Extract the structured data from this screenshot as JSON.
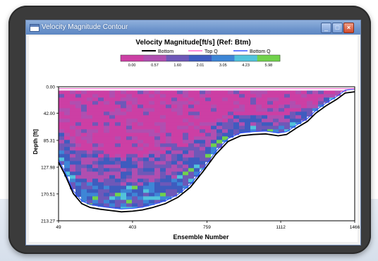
{
  "window": {
    "title": "Velocity Magnitude Contour",
    "icon": "window-icon",
    "controls": {
      "minimize": "_",
      "maximize": "□",
      "close": "×"
    }
  },
  "colors": {
    "frame": "#3b3b3b",
    "titlebar": "#6e95cc",
    "bottom_line": "#000000",
    "top_q_line": "#ff66cc",
    "bottom_q_line": "#3355ff"
  },
  "chart_data": {
    "type": "heatmap",
    "title": "Velocity Magnitude[ft/s] (Ref: Btm)",
    "legend": {
      "placement": "top",
      "entries": [
        "Bottom",
        "Top Q",
        "Bottom Q"
      ]
    },
    "colorbar": {
      "ticks": [
        "0.00",
        "0.57",
        "1.60",
        "2.01",
        "3.05",
        "4.23",
        "5.98"
      ],
      "colors": [
        "#cc3fa4",
        "#b04fb0",
        "#6e58b8",
        "#3e5cbf",
        "#3e86d6",
        "#52c3dc",
        "#71d24c"
      ]
    },
    "ylabel": "Depth [ft]",
    "xlabel": "Ensemble Number",
    "y_ticks": [
      "0.00",
      "42.00",
      "85.31",
      "127.98",
      "170.51",
      "213.27"
    ],
    "x_ticks": [
      "49",
      "403",
      "759",
      "1112",
      "1466"
    ],
    "ylim": [
      0,
      213.27
    ],
    "xlim": [
      49,
      1466
    ],
    "y_inverted": true,
    "bottom_profile": {
      "x": [
        49,
        80,
        120,
        160,
        200,
        250,
        300,
        350,
        403,
        450,
        500,
        560,
        620,
        680,
        740,
        800,
        860,
        920,
        980,
        1040,
        1100,
        1140,
        1190,
        1240,
        1280,
        1330,
        1380,
        1420,
        1466
      ],
      "depth": [
        120,
        140,
        170,
        186,
        192,
        195,
        197,
        199,
        198,
        196,
        192,
        186,
        176,
        160,
        135,
        108,
        87,
        78,
        76,
        75,
        78,
        76,
        65,
        55,
        42,
        30,
        20,
        10,
        8
      ]
    }
  }
}
